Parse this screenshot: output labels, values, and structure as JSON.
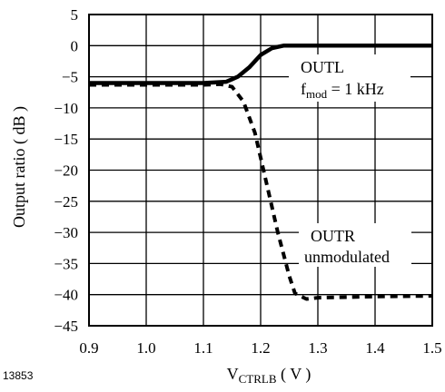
{
  "chart_data": {
    "type": "line",
    "xlabel": {
      "main": "V",
      "sub": "CTRLB",
      "rest": " ( V )"
    },
    "ylabel": "Output ratio ( dB )",
    "xlim": [
      0.9,
      1.5
    ],
    "ylim": [
      -45,
      5
    ],
    "x_ticks": [
      "0.9",
      "1.0",
      "1.1",
      "1.2",
      "1.3",
      "1.4",
      "1.5"
    ],
    "y_ticks": [
      "5",
      "0",
      "−5",
      "−10",
      "−15",
      "−20",
      "−25",
      "−30",
      "−35",
      "−40",
      "−45"
    ],
    "grid": true,
    "series": [
      {
        "style": "solid",
        "points": [
          [
            0.9,
            -6.0
          ],
          [
            1.0,
            -6.0
          ],
          [
            1.1,
            -6.0
          ],
          [
            1.14,
            -5.8
          ],
          [
            1.16,
            -5.0
          ],
          [
            1.18,
            -3.5
          ],
          [
            1.2,
            -1.5
          ],
          [
            1.22,
            -0.4
          ],
          [
            1.24,
            0.0
          ],
          [
            1.3,
            0.0
          ],
          [
            1.4,
            0.0
          ],
          [
            1.5,
            0.0
          ]
        ]
      },
      {
        "style": "dashed",
        "points": [
          [
            0.9,
            -6.3
          ],
          [
            1.0,
            -6.3
          ],
          [
            1.1,
            -6.3
          ],
          [
            1.13,
            -6.2
          ],
          [
            1.15,
            -6.6
          ],
          [
            1.17,
            -9.0
          ],
          [
            1.19,
            -14.0
          ],
          [
            1.21,
            -22.0
          ],
          [
            1.23,
            -30.0
          ],
          [
            1.25,
            -37.0
          ],
          [
            1.26,
            -39.8
          ],
          [
            1.28,
            -40.7
          ],
          [
            1.3,
            -40.5
          ],
          [
            1.4,
            -40.3
          ],
          [
            1.5,
            -40.2
          ]
        ]
      }
    ],
    "annotations": {
      "outl_label": "OUTL",
      "fmod_main": "f",
      "fmod_sub": "mod",
      "fmod_rest": " = 1 kHz",
      "outr_label": "OUTR",
      "outr_sub": "unmodulated"
    }
  },
  "figure_id": "13853"
}
